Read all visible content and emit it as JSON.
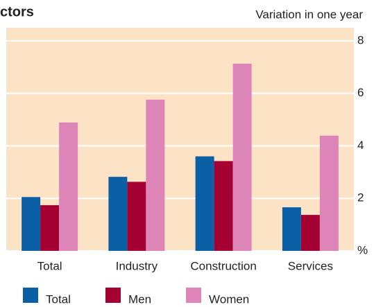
{
  "chart_data": {
    "type": "bar",
    "title": "ctors",
    "subtitle": "Variation in one year",
    "categories": [
      "Total",
      "Industry",
      "Construction",
      "Services"
    ],
    "series": [
      {
        "name": "Total",
        "color": "#0b5fa5",
        "values": [
          2.05,
          2.82,
          3.6,
          1.66
        ]
      },
      {
        "name": "Men",
        "color": "#a50034",
        "values": [
          1.74,
          2.63,
          3.42,
          1.37
        ]
      },
      {
        "name": "Women",
        "color": "#dd85b8",
        "values": [
          4.89,
          5.76,
          7.13,
          4.39
        ]
      }
    ],
    "ylim": [
      0,
      8.5
    ],
    "yticks": [
      {
        "value": 0,
        "label": "%"
      },
      2,
      4,
      6,
      8
    ],
    "grid": true,
    "background": "#fde3c5",
    "grid_color": "#ffffff"
  }
}
